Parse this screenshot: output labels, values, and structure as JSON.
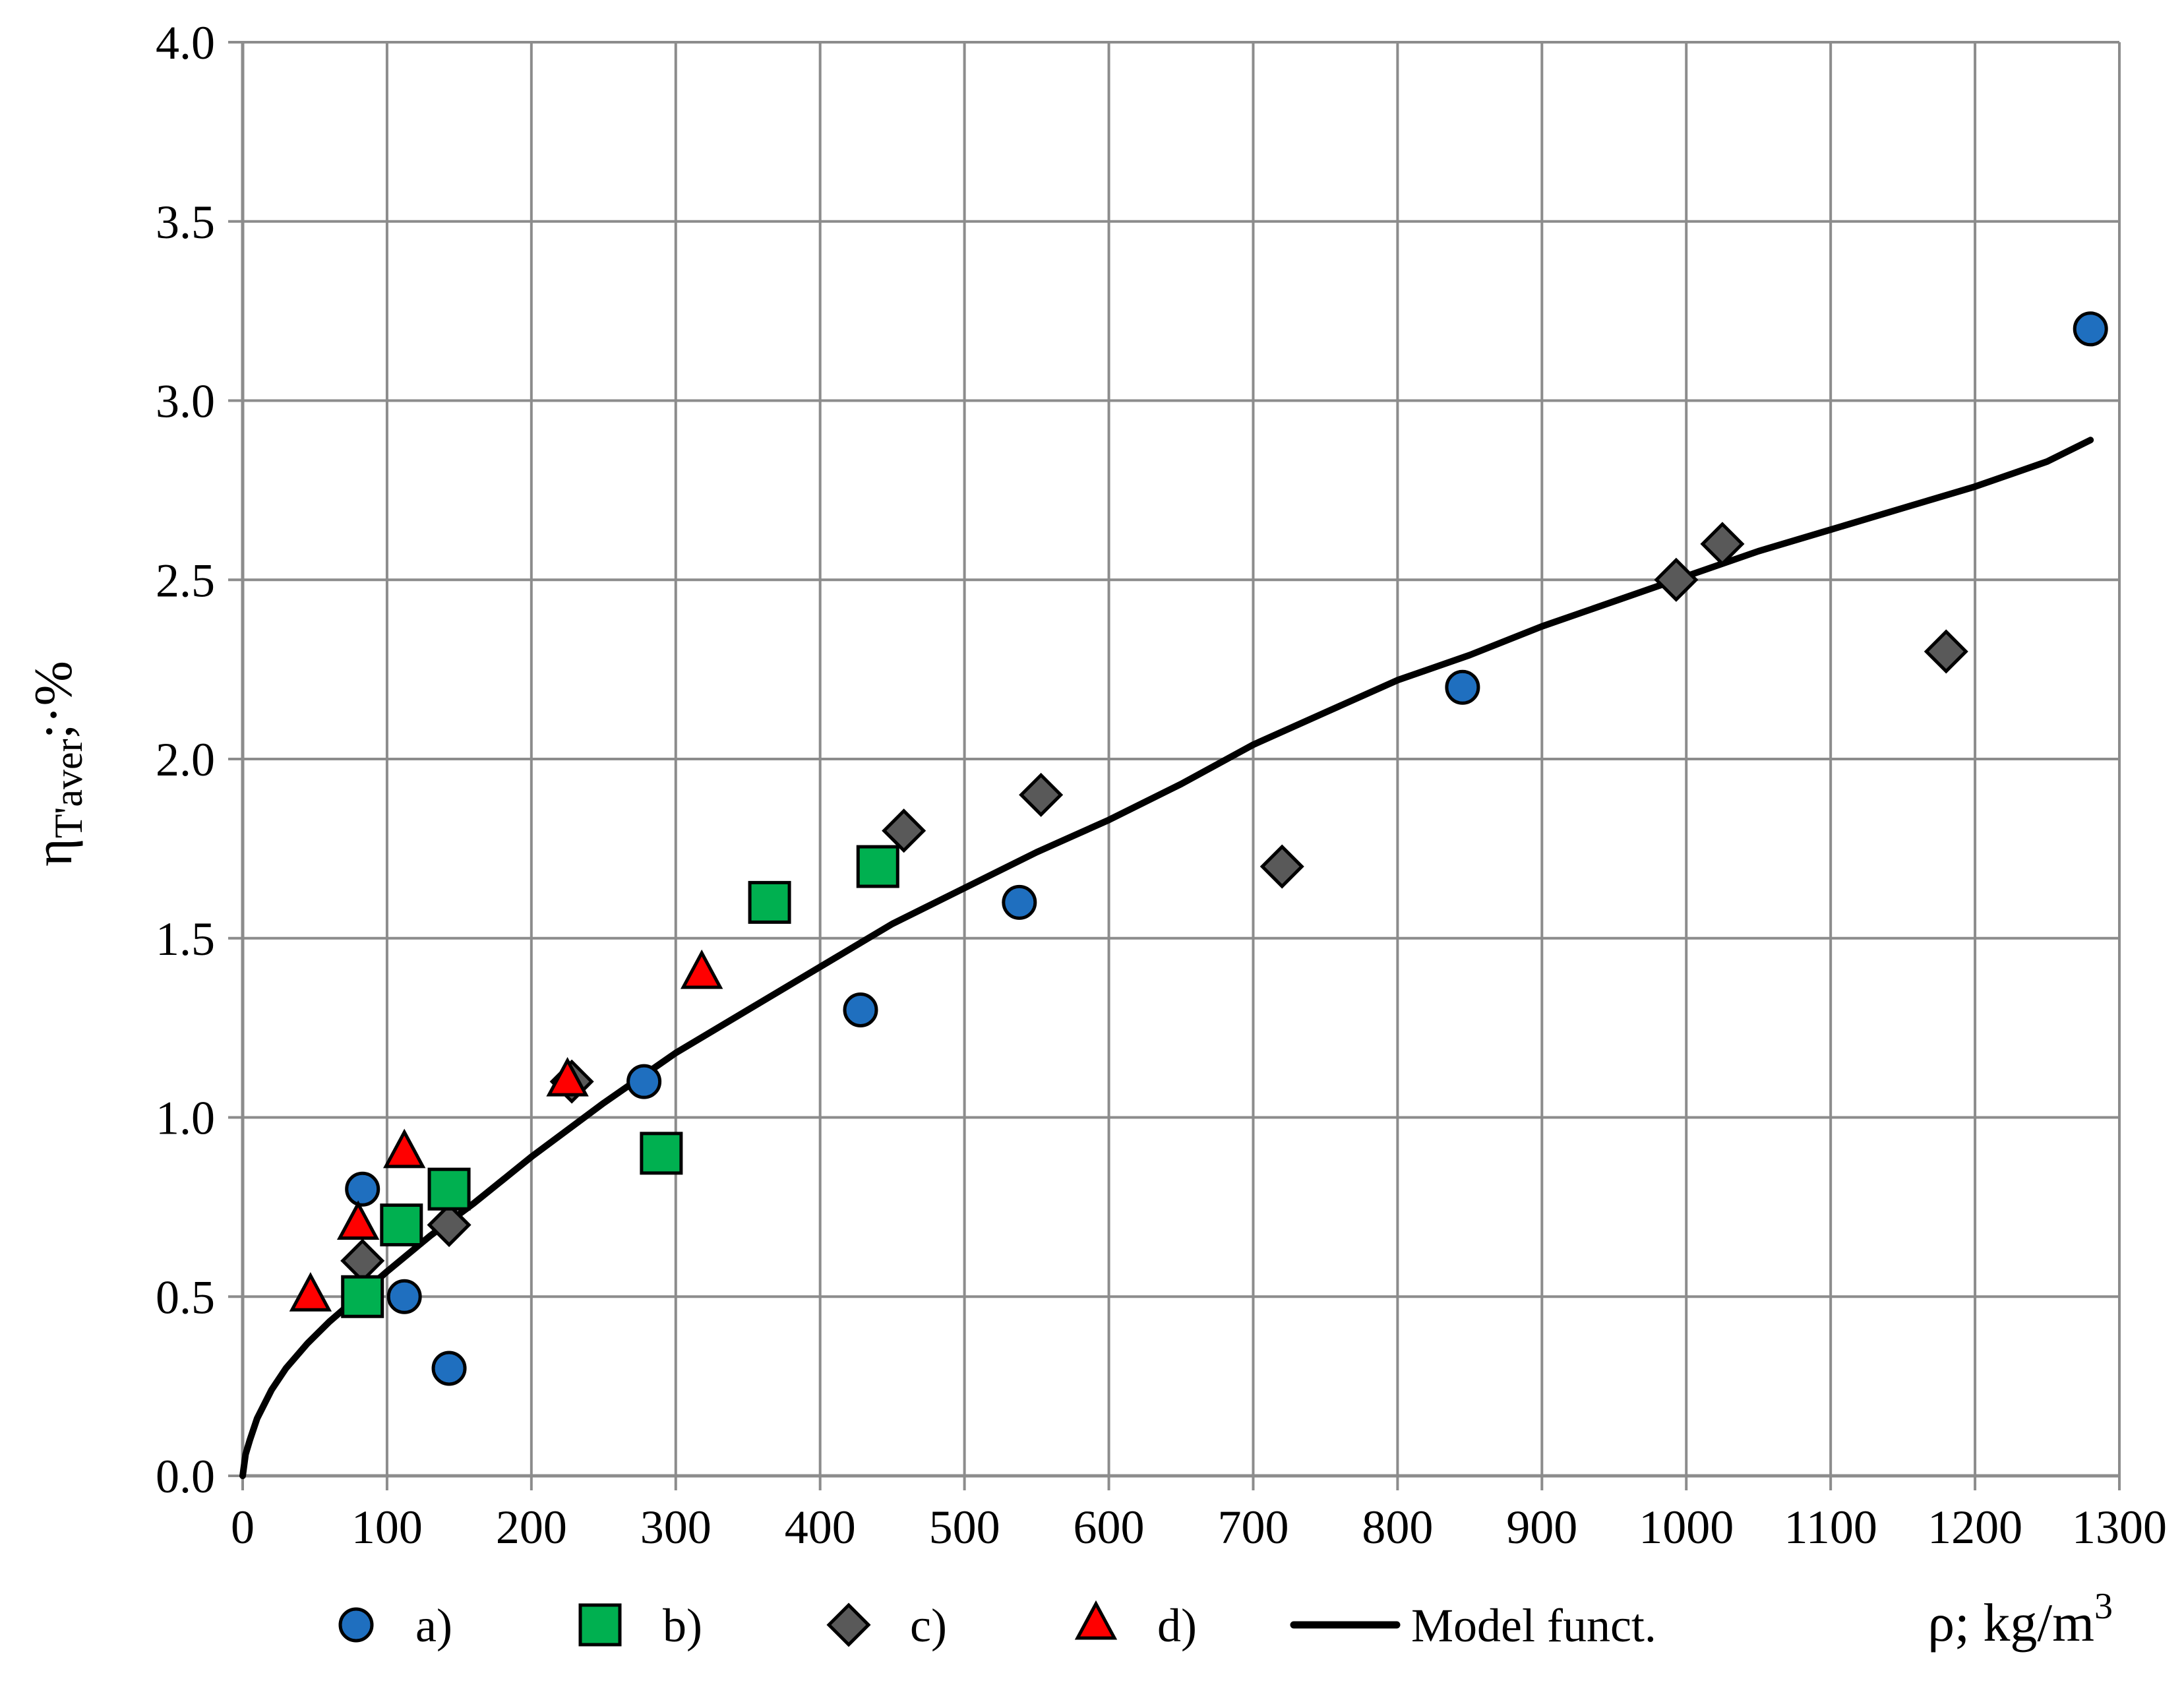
{
  "chart_data": {
    "type": "scatter",
    "title": "",
    "xlabel": "ρ; kg/m³",
    "xlabel_parts": {
      "base": "ρ; kg/m",
      "sup": "3"
    },
    "ylabel": "ηT'aver;·%",
    "ylabel_parts": {
      "main": "η",
      "sub": "T'aver",
      "tail": ";·%"
    },
    "xlim": [
      0,
      1300
    ],
    "ylim": [
      0,
      4
    ],
    "x_ticks": [
      "0",
      "100",
      "200",
      "300",
      "400",
      "500",
      "600",
      "700",
      "800",
      "900",
      "1000",
      "1100",
      "1200",
      "1300"
    ],
    "y_ticks": [
      "0.0",
      "0.5",
      "1.0",
      "1.5",
      "2.0",
      "2.5",
      "3.0",
      "3.5",
      "4.0"
    ],
    "grid": true,
    "legend_position": "bottom",
    "series": [
      {
        "name": "a)",
        "marker": "circle",
        "color": "#1f6fbf",
        "points": [
          [
            83,
            0.8
          ],
          [
            112,
            0.5
          ],
          [
            143,
            0.3
          ],
          [
            278,
            1.1
          ],
          [
            428,
            1.3
          ],
          [
            538,
            1.6
          ],
          [
            845,
            2.2
          ],
          [
            1280,
            3.2
          ]
        ]
      },
      {
        "name": "b)",
        "marker": "square",
        "color": "#00b050",
        "points": [
          [
            83,
            0.5
          ],
          [
            110,
            0.7
          ],
          [
            143,
            0.8
          ],
          [
            290,
            0.9
          ],
          [
            365,
            1.6
          ],
          [
            440,
            1.7
          ]
        ]
      },
      {
        "name": "c)",
        "marker": "diamond",
        "color": "#595959",
        "points": [
          [
            83,
            0.6
          ],
          [
            143,
            0.7
          ],
          [
            228,
            1.1
          ],
          [
            458,
            1.8
          ],
          [
            553,
            1.9
          ],
          [
            720,
            1.7
          ],
          [
            993,
            2.5
          ],
          [
            1025,
            2.6
          ],
          [
            1180,
            2.3
          ]
        ]
      },
      {
        "name": "d)",
        "marker": "triangle",
        "color": "#ff0000",
        "points": [
          [
            47,
            0.5
          ],
          [
            80,
            0.7
          ],
          [
            112,
            0.9
          ],
          [
            225,
            1.1
          ],
          [
            318,
            1.4
          ]
        ]
      },
      {
        "name": "Model funct.",
        "marker": "line",
        "color": "#000000",
        "points": [
          [
            0,
            0.0
          ],
          [
            2,
            0.06
          ],
          [
            5,
            0.1
          ],
          [
            10,
            0.16
          ],
          [
            20,
            0.24
          ],
          [
            30,
            0.3
          ],
          [
            45,
            0.37
          ],
          [
            60,
            0.43
          ],
          [
            80,
            0.5
          ],
          [
            100,
            0.57
          ],
          [
            130,
            0.67
          ],
          [
            160,
            0.76
          ],
          [
            200,
            0.89
          ],
          [
            250,
            1.04
          ],
          [
            300,
            1.18
          ],
          [
            350,
            1.3
          ],
          [
            400,
            1.42
          ],
          [
            450,
            1.54
          ],
          [
            500,
            1.64
          ],
          [
            550,
            1.74
          ],
          [
            600,
            1.83
          ],
          [
            650,
            1.93
          ],
          [
            700,
            2.04
          ],
          [
            750,
            2.13
          ],
          [
            800,
            2.22
          ],
          [
            850,
            2.29
          ],
          [
            900,
            2.37
          ],
          [
            950,
            2.44
          ],
          [
            1000,
            2.51
          ],
          [
            1050,
            2.58
          ],
          [
            1100,
            2.64
          ],
          [
            1150,
            2.7
          ],
          [
            1200,
            2.76
          ],
          [
            1250,
            2.83
          ],
          [
            1280,
            2.89
          ]
        ]
      }
    ]
  }
}
